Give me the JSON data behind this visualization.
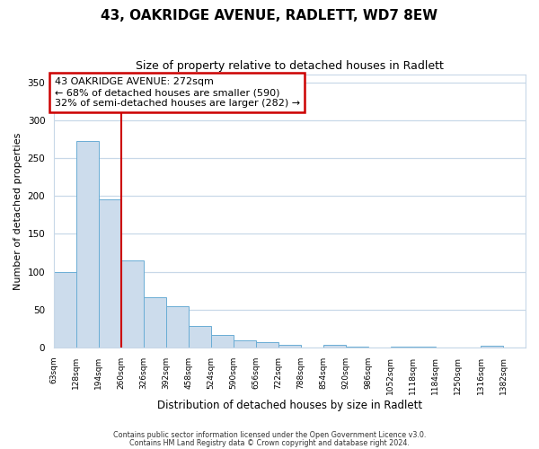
{
  "title": "43, OAKRIDGE AVENUE, RADLETT, WD7 8EW",
  "subtitle": "Size of property relative to detached houses in Radlett",
  "xlabel": "Distribution of detached houses by size in Radlett",
  "ylabel": "Number of detached properties",
  "bin_labels": [
    "63sqm",
    "128sqm",
    "194sqm",
    "260sqm",
    "326sqm",
    "392sqm",
    "458sqm",
    "524sqm",
    "590sqm",
    "656sqm",
    "722sqm",
    "788sqm",
    "854sqm",
    "920sqm",
    "986sqm",
    "1052sqm",
    "1118sqm",
    "1184sqm",
    "1250sqm",
    "1316sqm",
    "1382sqm"
  ],
  "bar_values": [
    100,
    272,
    196,
    115,
    66,
    54,
    28,
    17,
    10,
    7,
    4,
    0,
    4,
    1,
    0,
    1,
    1,
    0,
    0,
    3,
    0
  ],
  "bin_edges": [
    63,
    128,
    194,
    260,
    326,
    392,
    458,
    524,
    590,
    656,
    722,
    788,
    854,
    920,
    986,
    1052,
    1118,
    1184,
    1250,
    1316,
    1382,
    1448
  ],
  "bar_color": "#ccdcec",
  "bar_edge_color": "#6aadd5",
  "vline_x": 260,
  "vline_color": "#cc0000",
  "annotation_box_color": "#cc0000",
  "annotation_lines": [
    "43 OAKRIDGE AVENUE: 272sqm",
    "← 68% of detached houses are smaller (590)",
    "32% of semi-detached houses are larger (282) →"
  ],
  "ylim": [
    0,
    360
  ],
  "yticks": [
    0,
    50,
    100,
    150,
    200,
    250,
    300,
    350
  ],
  "footer_line1": "Contains HM Land Registry data © Crown copyright and database right 2024.",
  "footer_line2": "Contains public sector information licensed under the Open Government Licence v3.0.",
  "background_color": "#ffffff",
  "grid_color": "#c8d8e8",
  "title_fontsize": 11,
  "subtitle_fontsize": 9,
  "tick_fontsize": 6.5,
  "axis_label_fontsize": 8,
  "xlabel_fontsize": 8.5,
  "annotation_fontsize": 8
}
